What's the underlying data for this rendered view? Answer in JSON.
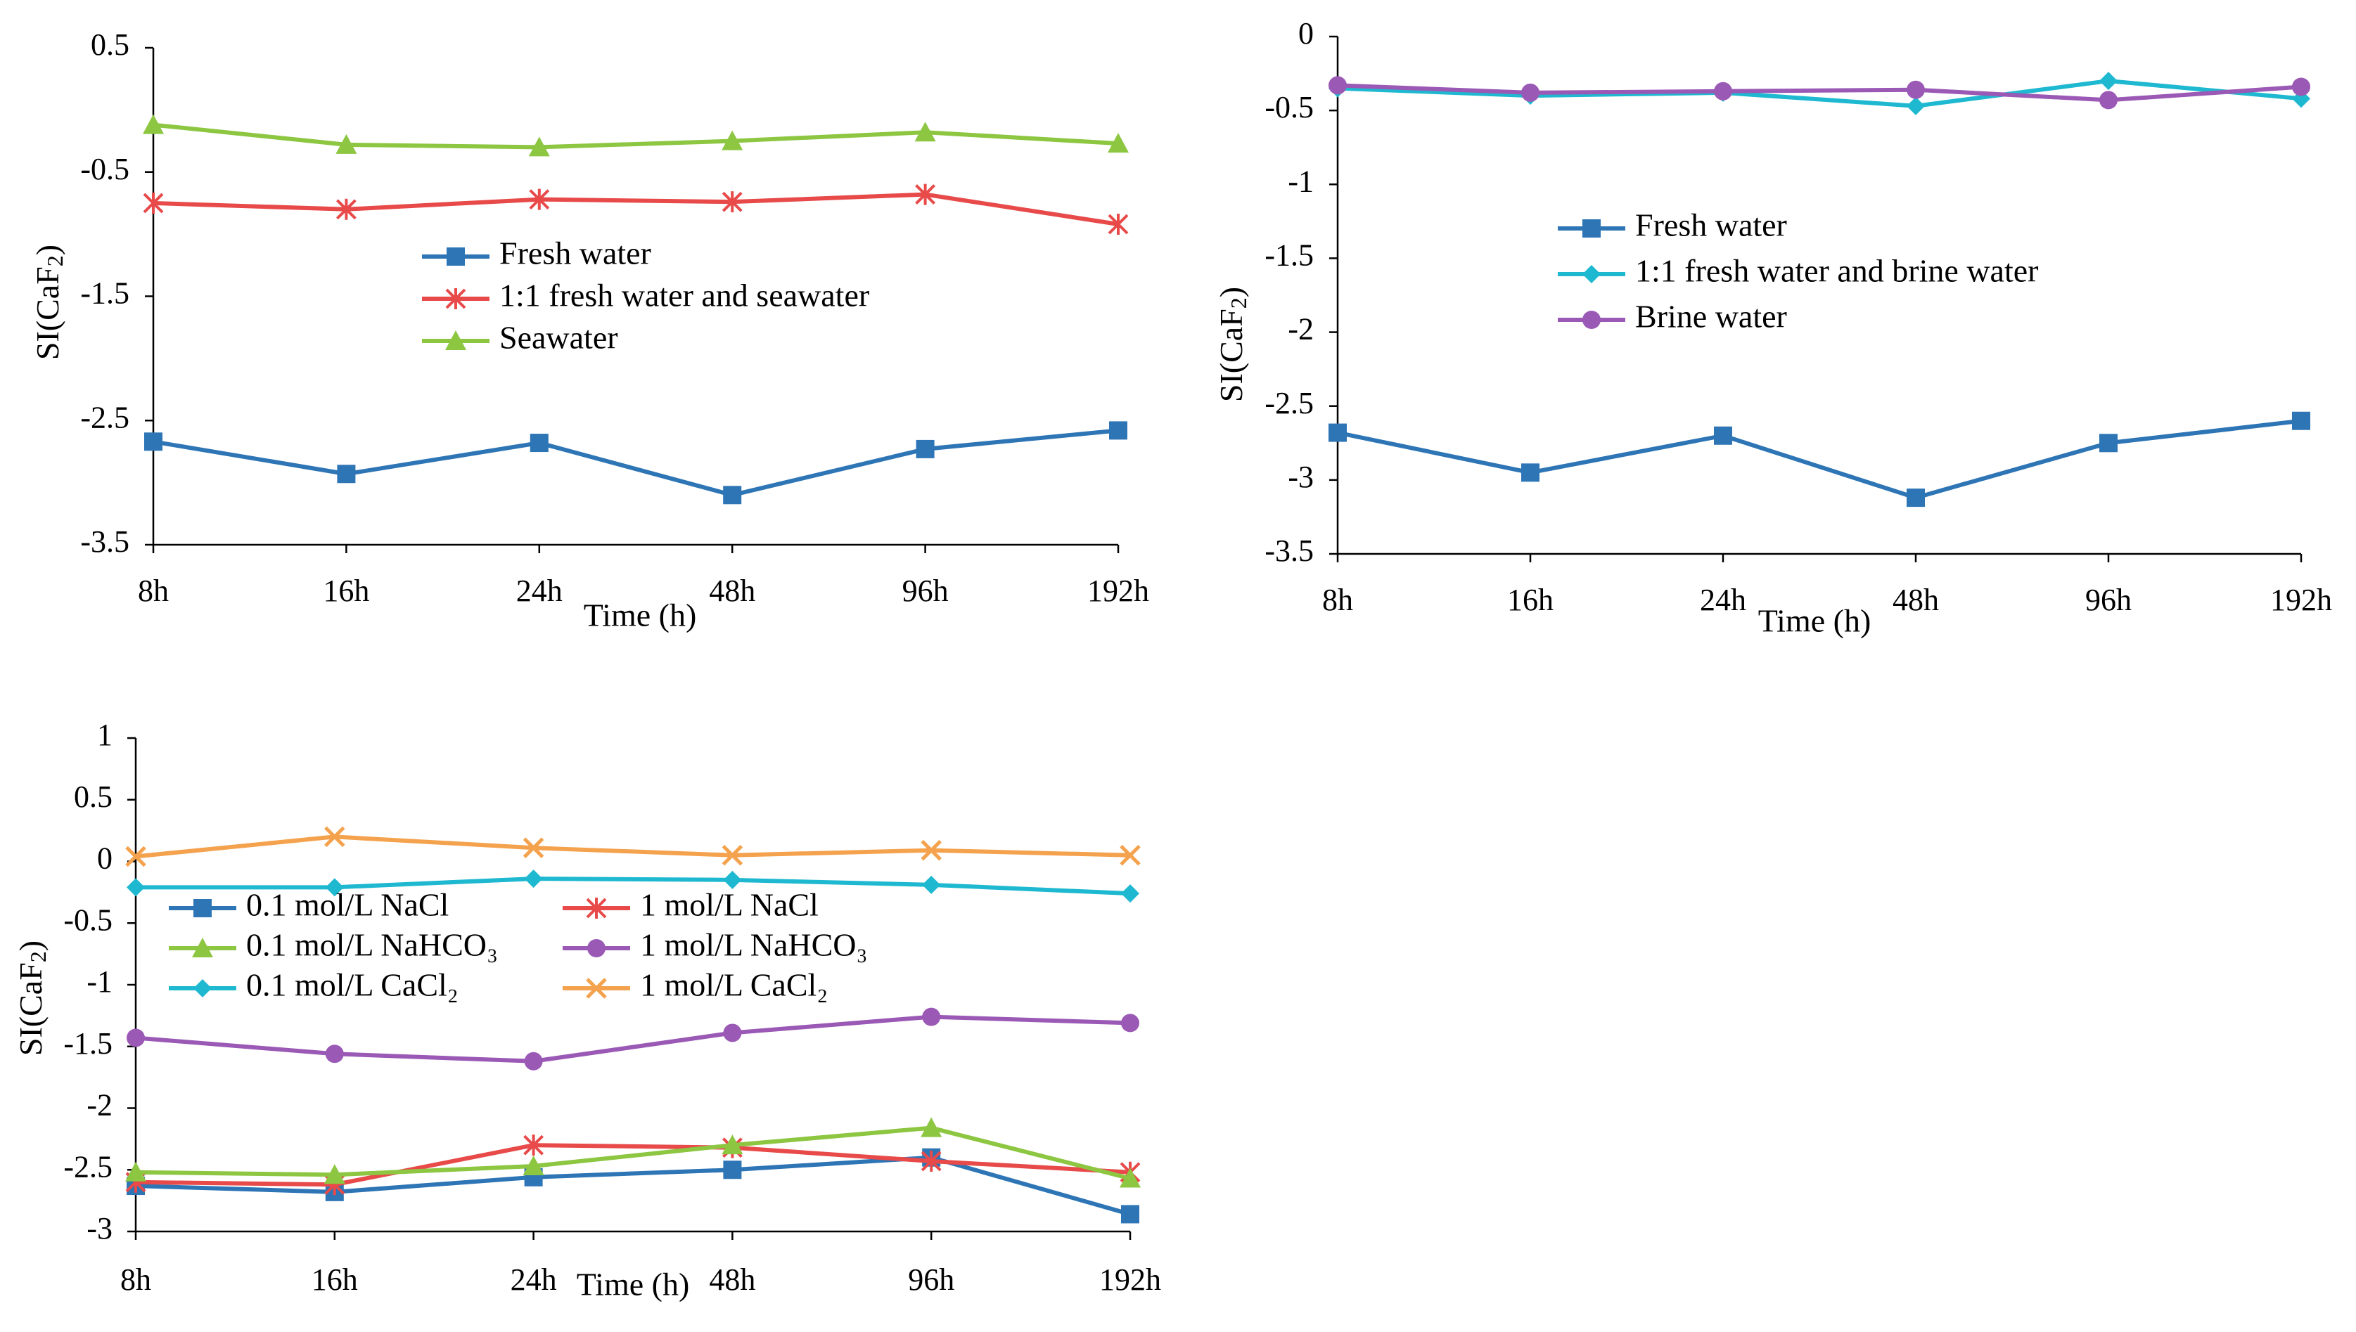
{
  "chart_data": [
    {
      "type": "line",
      "title": "",
      "xlabel": "Time (h)",
      "ylabel": "SI(CaF2)",
      "ylabel_main": "SI(CaF",
      "ylabel_sub": "2",
      "ylabel_close": ")",
      "ylim": [
        -3.5,
        0.5
      ],
      "yticks": [
        "0.5",
        "-0.5",
        "-1.5",
        "-2.5",
        "-3.5"
      ],
      "ytick_values": [
        0.5,
        -0.5,
        -1.5,
        -2.5,
        -3.5
      ],
      "categories": [
        "8h",
        "16h",
        "24h",
        "48h",
        "96h",
        "192h"
      ],
      "grid": false,
      "legend_position": "center",
      "series": [
        {
          "name": "Fresh water",
          "color": "#2E75B6",
          "marker": "square",
          "values": [
            -2.67,
            -2.93,
            -2.68,
            -3.1,
            -2.73,
            -2.58
          ]
        },
        {
          "name": "1:1 fresh water and seawater",
          "color": "#E84A4A",
          "marker": "asterisk",
          "values": [
            -0.75,
            -0.8,
            -0.72,
            -0.74,
            -0.68,
            -0.92
          ]
        },
        {
          "name": "Seawater",
          "color": "#8DC641",
          "marker": "triangle",
          "values": [
            -0.12,
            -0.28,
            -0.3,
            -0.25,
            -0.18,
            -0.27
          ]
        }
      ]
    },
    {
      "type": "line",
      "title": "",
      "xlabel": "Time (h)",
      "ylabel": "SI(CaF2)",
      "ylabel_main": "SI(CaF",
      "ylabel_sub": "2",
      "ylabel_close": ")",
      "ylim": [
        -3.5,
        0
      ],
      "yticks": [
        "0",
        "-0.5",
        "-1",
        "-1.5",
        "-2",
        "-2.5",
        "-3",
        "-3.5"
      ],
      "ytick_values": [
        0,
        -0.5,
        -1,
        -1.5,
        -2,
        -2.5,
        -3,
        -3.5
      ],
      "categories": [
        "8h",
        "16h",
        "24h",
        "48h",
        "96h",
        "192h"
      ],
      "grid": false,
      "legend_position": "center",
      "series": [
        {
          "name": "Fresh water",
          "color": "#2E75B6",
          "marker": "square",
          "values": [
            -2.68,
            -2.95,
            -2.7,
            -3.12,
            -2.75,
            -2.6
          ]
        },
        {
          "name": "1:1 fresh water and brine water",
          "color": "#1EB8D0",
          "marker": "diamond",
          "values": [
            -0.35,
            -0.4,
            -0.38,
            -0.47,
            -0.3,
            -0.42
          ]
        },
        {
          "name": "Brine water",
          "color": "#9B59B6",
          "marker": "circle",
          "values": [
            -0.33,
            -0.38,
            -0.37,
            -0.36,
            -0.43,
            -0.34
          ]
        }
      ]
    },
    {
      "type": "line",
      "title": "",
      "xlabel": "Time (h)",
      "ylabel": "SI(CaF2)",
      "ylabel_main": "SI(CaF",
      "ylabel_sub": "2",
      "ylabel_close": ")",
      "ylim": [
        -3,
        1
      ],
      "yticks": [
        "1",
        "0.5",
        "0",
        "-0.5",
        "-1",
        "-1.5",
        "-2",
        "-2.5",
        "-3"
      ],
      "ytick_values": [
        1,
        0.5,
        0,
        -0.5,
        -1,
        -1.5,
        -2,
        -2.5,
        -3
      ],
      "categories": [
        "8h",
        "16h",
        "24h",
        "48h",
        "96h",
        "192h"
      ],
      "grid": false,
      "legend_position": "center",
      "series": [
        {
          "name": "0.1 mol/L NaCl",
          "color": "#2E75B6",
          "marker": "square",
          "values": [
            -2.63,
            -2.68,
            -2.56,
            -2.5,
            -2.4,
            -2.86
          ]
        },
        {
          "name": "1 mol/L NaCl",
          "color": "#E84A4A",
          "marker": "asterisk",
          "values": [
            -2.6,
            -2.62,
            -2.3,
            -2.32,
            -2.43,
            -2.52
          ]
        },
        {
          "name": "0.1 mol/L NaHCO₃",
          "color": "#8DC641",
          "marker": "triangle",
          "values": [
            -2.52,
            -2.54,
            -2.47,
            -2.3,
            -2.16,
            -2.57
          ]
        },
        {
          "name": "1 mol/L NaHCO₃",
          "color": "#9B59B6",
          "marker": "circle",
          "values": [
            -1.43,
            -1.56,
            -1.62,
            -1.39,
            -1.26,
            -1.31
          ]
        },
        {
          "name": "0.1 mol/L CaCl₂",
          "color": "#1EB8D0",
          "marker": "diamond",
          "values": [
            -0.21,
            -0.21,
            -0.14,
            -0.15,
            -0.19,
            -0.26
          ]
        },
        {
          "name": "1 mol/L CaCl₂",
          "color": "#F4A24D",
          "marker": "x",
          "values": [
            0.04,
            0.2,
            0.11,
            0.05,
            0.09,
            0.05
          ]
        }
      ]
    }
  ]
}
